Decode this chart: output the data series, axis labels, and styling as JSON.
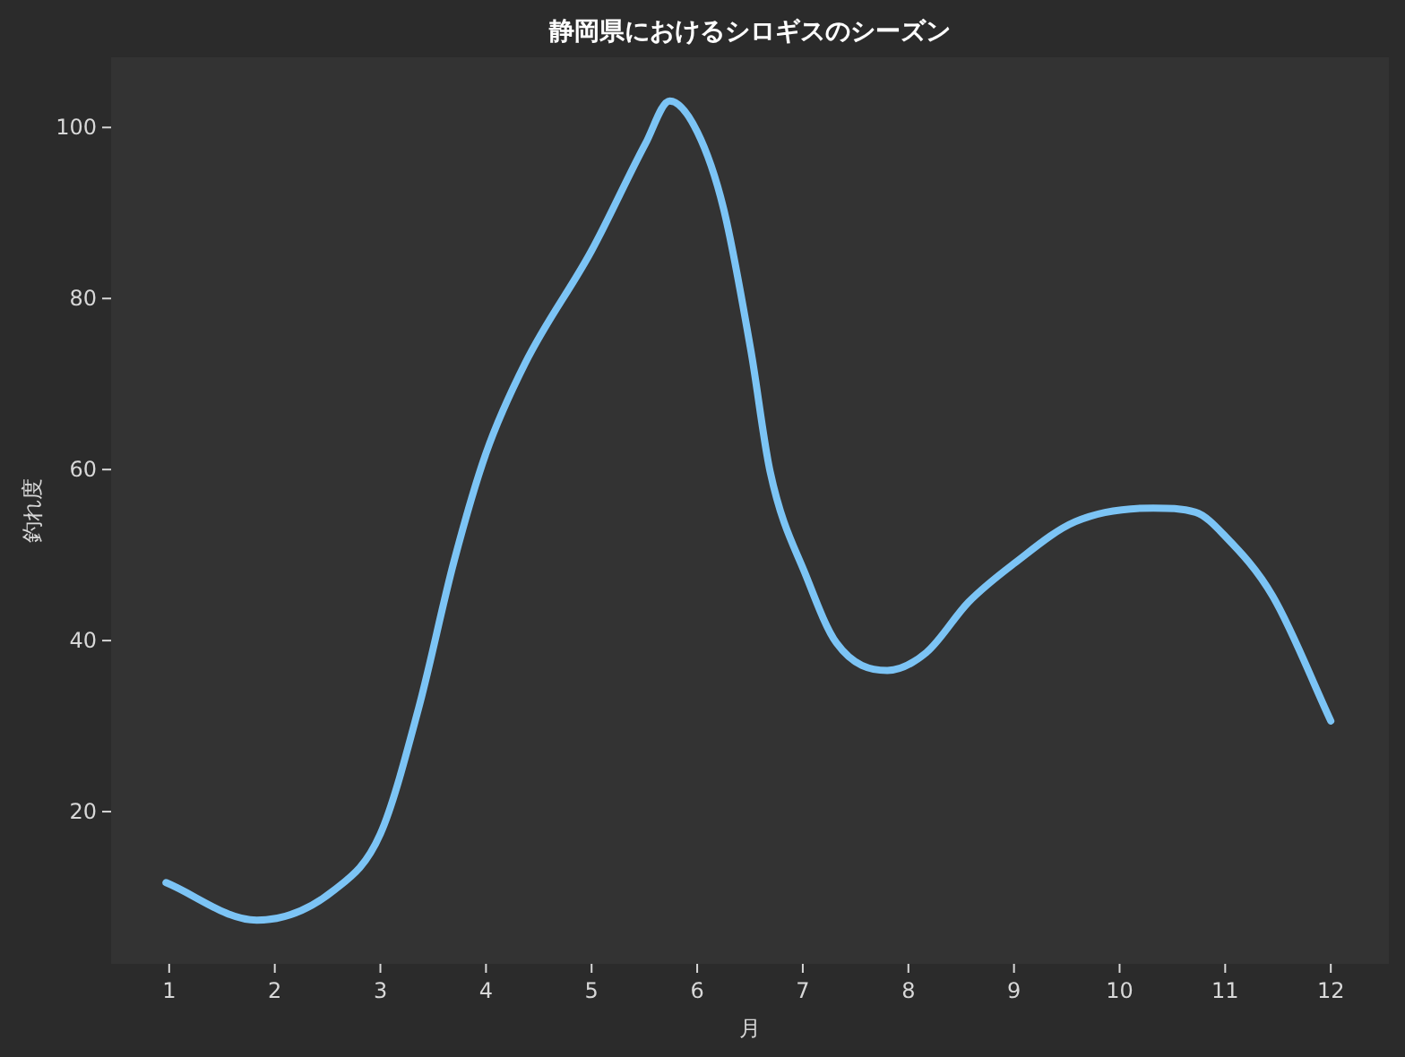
{
  "chart_data": {
    "type": "line",
    "title": "静岡県におけるシロギスのシーズン",
    "xlabel": "月",
    "ylabel": "釣れ度",
    "xlim": [
      0.45,
      12.55
    ],
    "ylim": [
      2.2,
      108.2
    ],
    "xticks": [
      1,
      2,
      3,
      4,
      5,
      6,
      7,
      8,
      9,
      10,
      11,
      12
    ],
    "yticks": [
      20,
      40,
      60,
      80,
      100
    ],
    "grid": false,
    "marker": "none",
    "line_style": "solid",
    "series": [
      {
        "color": "#7cc4f5",
        "x": [
          0.97,
          1.83,
          2.56,
          3,
          3.36,
          3.7,
          4,
          4.37,
          5,
          5.51,
          5.74,
          6,
          6.25,
          6.51,
          6.69,
          7.04,
          7.32,
          7.8,
          8.17,
          8.57,
          9,
          9.58,
          10.32,
          10.72,
          11,
          11.45,
          12
        ],
        "values": [
          11.7,
          7.3,
          10.8,
          17.4,
          32,
          49.4,
          61.9,
          72.4,
          85.6,
          98.1,
          103.1,
          99.5,
          90.5,
          73.8,
          59.8,
          47.3,
          39.7,
          36.5,
          38.6,
          44.5,
          49,
          53.9,
          55.5,
          55,
          52.2,
          45.2,
          30.6
        ]
      }
    ]
  }
}
